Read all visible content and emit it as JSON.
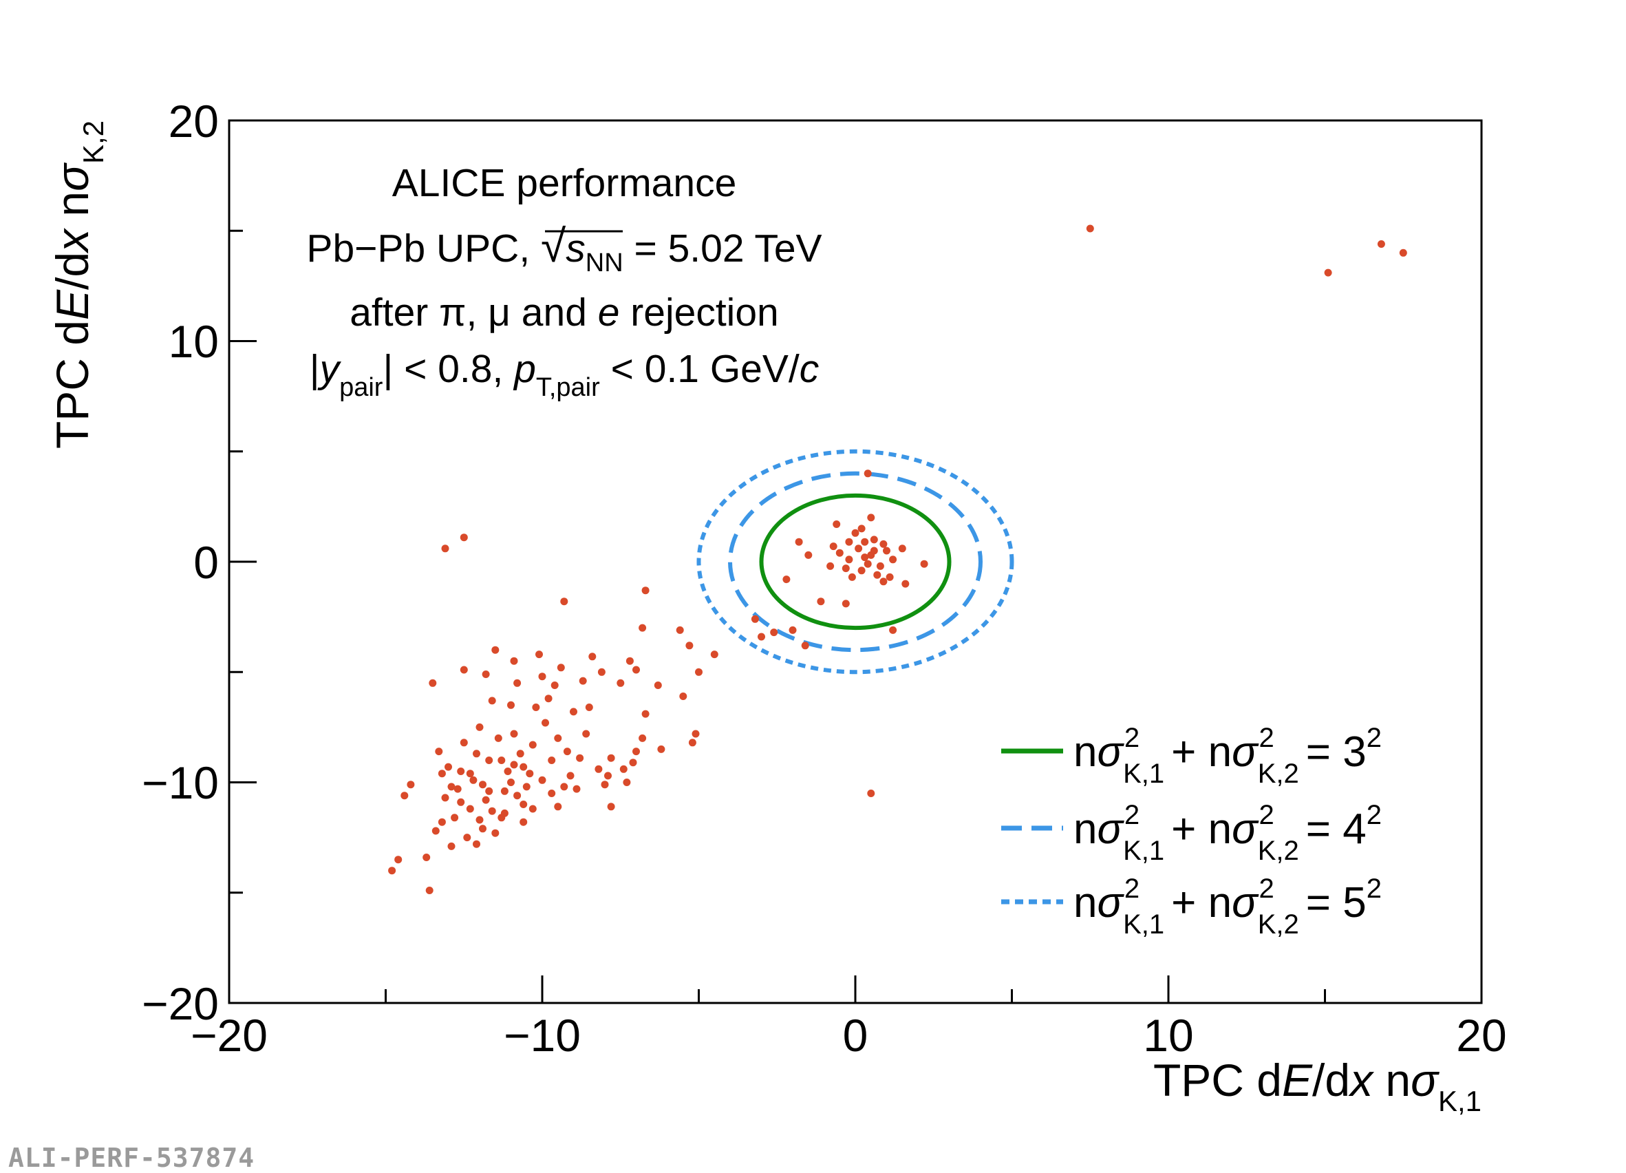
{
  "chart_data": {
    "type": "scatter",
    "xlabel": "TPC dE/dx nσK,1",
    "ylabel": "TPC dE/dx nσK,2",
    "xlim": [
      -20,
      20
    ],
    "ylim": [
      -20,
      20
    ],
    "xticks": [
      -20,
      -10,
      0,
      10,
      20
    ],
    "xtick_labels": [
      "−20",
      "−10",
      "0",
      "10",
      "20"
    ],
    "yticks": [
      -20,
      -10,
      0,
      10,
      20
    ],
    "ytick_labels": [
      "−20",
      "−10",
      "0",
      "10",
      "20"
    ],
    "minor_ticks": [
      -15,
      -5,
      5,
      15
    ],
    "annotations": {
      "line1": "ALICE performance",
      "line2_prefix": "Pb−Pb UPC,",
      "line2_sqrt_s": "s",
      "line2_sqrt_sub": "NN",
      "line2_value": "= 5.02 TeV",
      "line3_text": "after π, μ and",
      "line3_e": "e",
      "line3_suffix": "rejection",
      "line4_y": "y",
      "line4_y_sub": "pair",
      "line4_cut1": "| < 0.8,",
      "line4_p": "p",
      "line4_p_sub": "T,pair",
      "line4_cut2": "< 0.1 GeV/",
      "line4_c": "c"
    },
    "contours": [
      {
        "name": "nσ²K,1 + nσ²K,2 = 3²",
        "radius": 3,
        "color": "#109010",
        "style": "solid"
      },
      {
        "name": "nσ²K,1 + nσ²K,2 = 4²",
        "radius": 4,
        "color": "#3c96e6",
        "style": "dashed"
      },
      {
        "name": "nσ²K,1 + nσ²K,2 = 5²",
        "radius": 5,
        "color": "#3c96e6",
        "style": "dotted"
      }
    ],
    "legend": {
      "position": "bottom-right",
      "entries": [
        {
          "n": "n",
          "sigma": "σ",
          "sub1": "K,1",
          "plus": "+ n",
          "sub2": "K,2",
          "eq": "= 3",
          "exp": "2",
          "sq": "2"
        },
        {
          "n": "n",
          "sigma": "σ",
          "sub1": "K,1",
          "plus": "+ n",
          "sub2": "K,2",
          "eq": "= 4",
          "exp": "2",
          "sq": "2"
        },
        {
          "n": "n",
          "sigma": "σ",
          "sub1": "K,1",
          "plus": "+ n",
          "sub2": "K,2",
          "eq": "= 5",
          "exp": "2",
          "sq": "2"
        }
      ]
    },
    "point_color": "#d94a2a",
    "points": [
      [
        7.5,
        15.1
      ],
      [
        15.1,
        13.1
      ],
      [
        16.8,
        14.4
      ],
      [
        17.5,
        14.0
      ],
      [
        -13.1,
        0.6
      ],
      [
        -12.5,
        1.1
      ],
      [
        -9.3,
        -1.8
      ],
      [
        -6.7,
        -1.3
      ],
      [
        0.5,
        -10.5
      ],
      [
        0.1,
        0.6
      ],
      [
        0.3,
        0.9
      ],
      [
        -0.2,
        0.1
      ],
      [
        0.5,
        0.3
      ],
      [
        0.8,
        -0.2
      ],
      [
        0.2,
        -0.4
      ],
      [
        -0.5,
        0.4
      ],
      [
        0.6,
        1.0
      ],
      [
        1.0,
        0.5
      ],
      [
        -0.3,
        -0.3
      ],
      [
        0.4,
        -0.1
      ],
      [
        0.9,
        0.8
      ],
      [
        -0.8,
        -0.2
      ],
      [
        0.0,
        1.3
      ],
      [
        0.7,
        -0.6
      ],
      [
        1.2,
        0.1
      ],
      [
        -0.1,
        -0.7
      ],
      [
        0.3,
        0.2
      ],
      [
        0.5,
        2.0
      ],
      [
        -0.6,
        1.7
      ],
      [
        1.1,
        -0.7
      ],
      [
        -1.8,
        0.9
      ],
      [
        -1.5,
        0.3
      ],
      [
        -2.2,
        -0.8
      ],
      [
        -1.1,
        -1.8
      ],
      [
        -0.3,
        -1.9
      ],
      [
        1.6,
        -1.0
      ],
      [
        2.2,
        -0.1
      ],
      [
        1.5,
        0.6
      ],
      [
        0.9,
        -0.9
      ],
      [
        0.2,
        1.5
      ],
      [
        -0.7,
        0.7
      ],
      [
        0.4,
        4.0
      ],
      [
        1.2,
        -3.1
      ],
      [
        -1.6,
        -3.8
      ],
      [
        -2.0,
        -3.1
      ],
      [
        -3.2,
        -2.6
      ],
      [
        -2.6,
        -3.2
      ],
      [
        -3.0,
        -3.4
      ],
      [
        -0.2,
        0.9
      ],
      [
        0.6,
        0.5
      ],
      [
        -4.5,
        -4.2
      ],
      [
        -5.0,
        -5.0
      ],
      [
        -5.3,
        -3.8
      ],
      [
        -5.6,
        -3.1
      ],
      [
        -5.5,
        -6.1
      ],
      [
        -5.1,
        -7.8
      ],
      [
        -5.2,
        -8.2
      ],
      [
        -6.8,
        -3.0
      ],
      [
        -7.0,
        -4.9
      ],
      [
        -6.7,
        -6.9
      ],
      [
        -6.3,
        -5.6
      ],
      [
        -6.2,
        -8.5
      ],
      [
        -6.8,
        -8.0
      ],
      [
        -7.2,
        -4.5
      ],
      [
        -7.5,
        -5.5
      ],
      [
        -7.0,
        -8.6
      ],
      [
        -7.4,
        -9.4
      ],
      [
        -7.3,
        -10.0
      ],
      [
        -7.1,
        -9.1
      ],
      [
        -7.8,
        -8.9
      ],
      [
        -7.9,
        -9.7
      ],
      [
        -8.2,
        -9.4
      ],
      [
        -8.0,
        -10.1
      ],
      [
        -7.8,
        -11.1
      ],
      [
        -8.1,
        -5.0
      ],
      [
        -8.4,
        -4.3
      ],
      [
        -8.5,
        -6.6
      ],
      [
        -8.6,
        -7.8
      ],
      [
        -8.8,
        -8.9
      ],
      [
        -9.0,
        -6.8
      ],
      [
        -9.1,
        -9.7
      ],
      [
        -9.3,
        -10.2
      ],
      [
        -9.5,
        -8.0
      ],
      [
        -9.6,
        -5.6
      ],
      [
        -9.7,
        -9.0
      ],
      [
        -9.9,
        -7.3
      ],
      [
        -9.8,
        -6.2
      ],
      [
        -10.0,
        -5.2
      ],
      [
        -10.1,
        -4.2
      ],
      [
        -10.2,
        -6.6
      ],
      [
        -10.3,
        -8.3
      ],
      [
        -10.4,
        -9.6
      ],
      [
        -10.5,
        -10.2
      ],
      [
        -10.6,
        -11.0
      ],
      [
        -10.7,
        -8.7
      ],
      [
        -10.9,
        -7.8
      ],
      [
        -10.9,
        -4.5
      ],
      [
        -11.0,
        -6.5
      ],
      [
        -11.1,
        -9.5
      ],
      [
        -11.2,
        -10.4
      ],
      [
        -11.3,
        -11.6
      ],
      [
        -11.4,
        -8.0
      ],
      [
        -11.5,
        -4.0
      ],
      [
        -11.6,
        -6.3
      ],
      [
        -11.7,
        -9.0
      ],
      [
        -11.8,
        -10.8
      ],
      [
        -11.9,
        -12.1
      ],
      [
        -12.0,
        -7.5
      ],
      [
        -12.1,
        -8.7
      ],
      [
        -12.2,
        -9.9
      ],
      [
        -12.3,
        -11.2
      ],
      [
        -12.4,
        -12.5
      ],
      [
        -12.5,
        -8.2
      ],
      [
        -12.6,
        -9.5
      ],
      [
        -12.7,
        -10.3
      ],
      [
        -12.8,
        -11.6
      ],
      [
        -12.9,
        -12.9
      ],
      [
        -13.0,
        -9.3
      ],
      [
        -13.1,
        -10.7
      ],
      [
        -13.2,
        -11.8
      ],
      [
        -13.3,
        -8.6
      ],
      [
        -13.4,
        -12.2
      ],
      [
        -13.5,
        -5.5
      ],
      [
        -13.6,
        -14.9
      ],
      [
        -13.7,
        -13.4
      ],
      [
        -14.2,
        -10.1
      ],
      [
        -14.4,
        -10.6
      ],
      [
        -14.6,
        -13.5
      ],
      [
        -14.8,
        -14.0
      ],
      [
        -12.1,
        -12.8
      ],
      [
        -11.9,
        -10.1
      ],
      [
        -11.6,
        -11.3
      ],
      [
        -11.3,
        -9.0
      ],
      [
        -11.0,
        -10.0
      ],
      [
        -10.8,
        -10.6
      ],
      [
        -10.6,
        -9.3
      ],
      [
        -10.3,
        -11.2
      ],
      [
        -10.0,
        -9.9
      ],
      [
        -9.7,
        -10.5
      ],
      [
        -9.5,
        -11.1
      ],
      [
        -9.2,
        -8.6
      ],
      [
        -8.9,
        -10.3
      ],
      [
        -12.6,
        -10.9
      ],
      [
        -12.3,
        -9.6
      ],
      [
        -12.0,
        -11.7
      ],
      [
        -11.7,
        -10.4
      ],
      [
        -11.5,
        -12.3
      ],
      [
        -11.2,
        -11.4
      ],
      [
        -10.9,
        -9.2
      ],
      [
        -10.6,
        -11.8
      ],
      [
        -12.9,
        -10.2
      ],
      [
        -13.2,
        -9.6
      ],
      [
        -11.8,
        -5.1
      ],
      [
        -12.5,
        -4.9
      ],
      [
        -10.8,
        -5.5
      ],
      [
        -9.4,
        -4.8
      ],
      [
        -8.7,
        -5.4
      ]
    ]
  },
  "watermark": "ALI-PERF-537874"
}
